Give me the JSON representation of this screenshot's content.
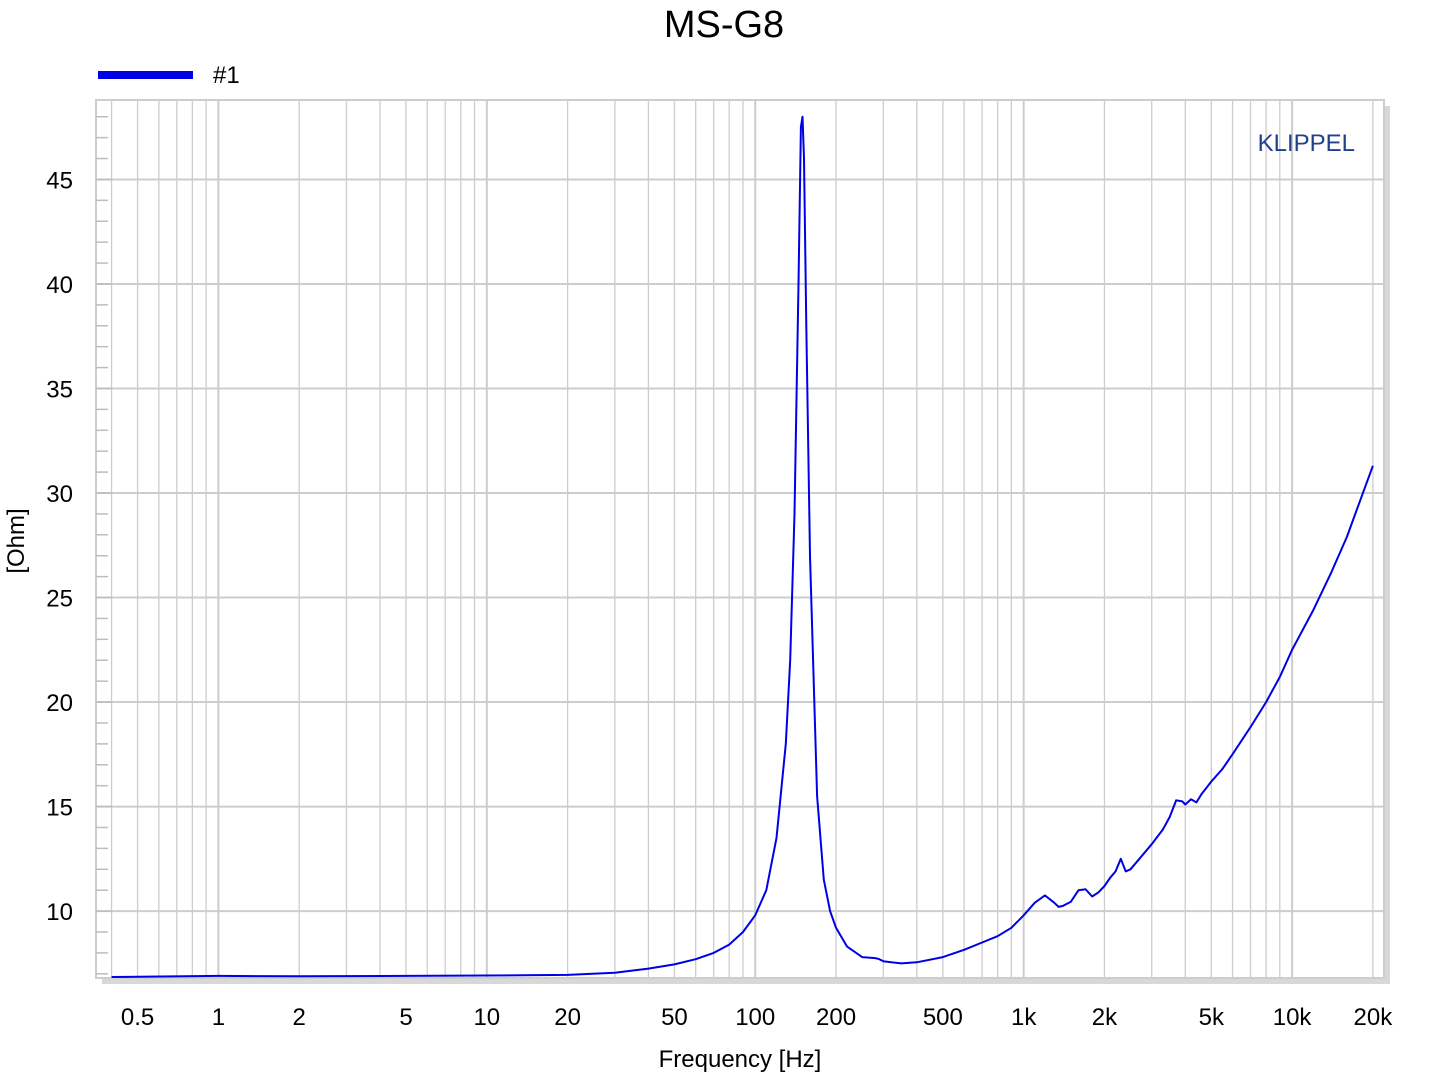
{
  "chart_data": {
    "type": "line",
    "title": "MS-G8",
    "xlabel": "Frequency [Hz]",
    "ylabel": "[Ohm]",
    "x_scale": "log",
    "xlim": [
      0.35,
      22000
    ],
    "ylim": [
      6.8,
      48.8
    ],
    "grid": true,
    "legend_position": "top-left",
    "watermark": "KLIPPEL",
    "colors": {
      "series": "#0000e6",
      "grid": "#cdcdcd",
      "brand": "#1f3f8f"
    },
    "x_ticks": [
      {
        "v": 0.5,
        "label": "0.5"
      },
      {
        "v": 1,
        "label": "1"
      },
      {
        "v": 2,
        "label": "2"
      },
      {
        "v": 5,
        "label": "5"
      },
      {
        "v": 10,
        "label": "10"
      },
      {
        "v": 20,
        "label": "20"
      },
      {
        "v": 50,
        "label": "50"
      },
      {
        "v": 100,
        "label": "100"
      },
      {
        "v": 200,
        "label": "200"
      },
      {
        "v": 500,
        "label": "500"
      },
      {
        "v": 1000,
        "label": "1k"
      },
      {
        "v": 2000,
        "label": "2k"
      },
      {
        "v": 5000,
        "label": "5k"
      },
      {
        "v": 10000,
        "label": "10k"
      },
      {
        "v": 20000,
        "label": "20k"
      }
    ],
    "y_ticks": [
      {
        "v": 10,
        "label": "10"
      },
      {
        "v": 15,
        "label": "15"
      },
      {
        "v": 20,
        "label": "20"
      },
      {
        "v": 25,
        "label": "25"
      },
      {
        "v": 30,
        "label": "30"
      },
      {
        "v": 35,
        "label": "35"
      },
      {
        "v": 40,
        "label": "40"
      },
      {
        "v": 45,
        "label": "45"
      }
    ],
    "series": [
      {
        "name": "#1",
        "x": [
          0.4,
          1,
          2,
          5,
          10,
          20,
          30,
          40,
          50,
          60,
          70,
          80,
          90,
          100,
          110,
          120,
          130,
          135,
          140,
          145,
          148,
          150,
          152,
          155,
          160,
          170,
          180,
          190,
          200,
          220,
          250,
          280,
          290,
          300,
          350,
          400,
          500,
          600,
          700,
          800,
          900,
          1000,
          1100,
          1200,
          1300,
          1350,
          1400,
          1500,
          1600,
          1700,
          1800,
          1900,
          2000,
          2100,
          2200,
          2300,
          2400,
          2500,
          2700,
          3000,
          3300,
          3500,
          3700,
          3900,
          4000,
          4200,
          4400,
          4600,
          4800,
          5000,
          5500,
          6000,
          7000,
          8000,
          9000,
          10000,
          12000,
          14000,
          16000,
          18000,
          20000
        ],
        "y": [
          6.85,
          6.9,
          6.88,
          6.9,
          6.92,
          6.95,
          7.05,
          7.25,
          7.45,
          7.7,
          8.0,
          8.4,
          9.0,
          9.8,
          11.0,
          13.5,
          18.0,
          22.0,
          29.0,
          40.0,
          47.5,
          48.0,
          46.0,
          38.0,
          27.0,
          15.5,
          11.5,
          10.0,
          9.2,
          8.3,
          7.8,
          7.75,
          7.7,
          7.6,
          7.5,
          7.55,
          7.8,
          8.15,
          8.5,
          8.8,
          9.2,
          9.8,
          10.4,
          10.75,
          10.4,
          10.2,
          10.25,
          10.45,
          11.0,
          11.05,
          10.7,
          10.9,
          11.2,
          11.6,
          11.9,
          12.5,
          11.9,
          12.0,
          12.5,
          13.2,
          13.9,
          14.5,
          15.3,
          15.25,
          15.1,
          15.35,
          15.2,
          15.6,
          15.9,
          16.2,
          16.8,
          17.5,
          18.8,
          20.0,
          21.2,
          22.5,
          24.4,
          26.2,
          27.9,
          29.7,
          31.3
        ]
      }
    ]
  }
}
